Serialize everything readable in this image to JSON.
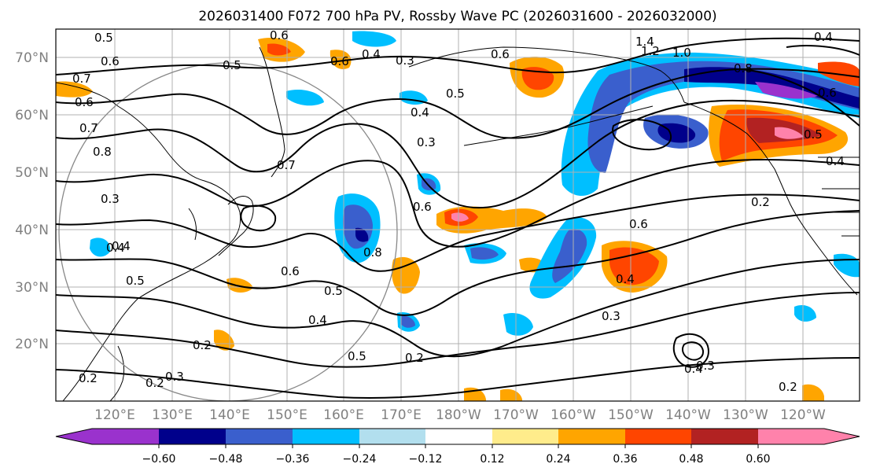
{
  "title": "2026031400 F072 700 hPa PV, Rossby Wave PC (2026031600 - 2026032000)",
  "lat_labels": [
    "70°N",
    "60°N",
    "50°N",
    "40°N",
    "30°N",
    "20°N"
  ],
  "lon_labels": [
    "120°E",
    "130°E",
    "140°E",
    "150°E",
    "160°E",
    "170°E",
    "180°W",
    "170°W",
    "160°W",
    "150°W",
    "140°W",
    "130°W",
    "120°W"
  ],
  "colorbar": {
    "colors": [
      "#9a32cd",
      "#00008b",
      "#3a5fcd",
      "#00bfff",
      "#b2dfee",
      "#ffffff",
      "#ffec8b",
      "#ffa500",
      "#ff4500",
      "#b22222",
      "#ff82ab"
    ],
    "tick_labels": [
      "−0.60",
      "−0.48",
      "−0.36",
      "−0.24",
      "−0.12",
      "0.12",
      "0.24",
      "0.36",
      "0.48",
      "0.60"
    ]
  },
  "contour_labels": [
    "0.5",
    "0.6",
    "0.7",
    "0.6",
    "0.7",
    "0.8",
    "0.3",
    "0.4",
    "0.5",
    "0.5",
    "0.4",
    "0.3",
    "0.6",
    "0.5",
    "0.4",
    "0.3",
    "0.6",
    "1.4",
    "1.2",
    "1.0",
    "0.4",
    "0.6",
    "0.8",
    "0.6",
    "0.5",
    "0.4",
    "0.4",
    "0.2",
    "0.3",
    "0.6",
    "0.5",
    "0.4",
    "0.2",
    "0.2",
    "0.2",
    "0.3",
    "0.2",
    "0.4",
    "0.3",
    "0.2",
    "0.6",
    "0.4",
    "0.7",
    "0.8",
    "0.5",
    "0.6"
  ]
}
